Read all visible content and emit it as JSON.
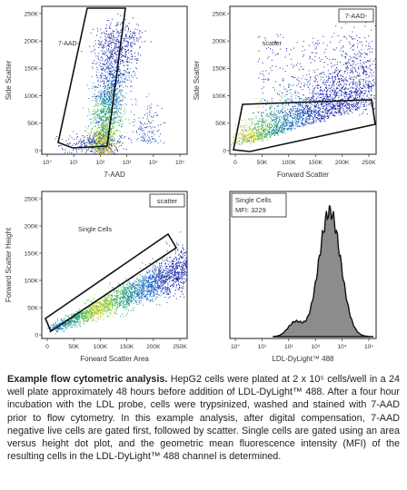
{
  "panels": [
    {
      "id": "p1",
      "type": "scatter-density",
      "xlabel": "7-AAD",
      "ylabel": "Side Scatter",
      "x_scale": "log",
      "xticks": [
        "10°",
        "10¹",
        "10²",
        "10³",
        "10⁴",
        "10⁵"
      ],
      "yticks": [
        "0",
        "50K",
        "100K",
        "150K",
        "200K",
        "250K"
      ],
      "gate_label": "7-AAD-",
      "title_box": ""
    },
    {
      "id": "p2",
      "type": "scatter-density",
      "xlabel": "Forward Scatter",
      "ylabel": "Side Scatter",
      "xticks": [
        "0",
        "50K",
        "100K",
        "150K",
        "200K",
        "250K"
      ],
      "yticks": [
        "0",
        "50K",
        "100K",
        "150K",
        "200K",
        "250K"
      ],
      "gate_label": "scatter",
      "title_box": "7-AAD-"
    },
    {
      "id": "p3",
      "type": "scatter-density",
      "xlabel": "Forward Scatter Area",
      "ylabel": "Forward Scatter Height",
      "xticks": [
        "0",
        "50K",
        "100K",
        "150K",
        "200K",
        "250K"
      ],
      "yticks": [
        "0",
        "50K",
        "100K",
        "150K",
        "200K",
        "250K"
      ],
      "gate_label": "Single Cells",
      "title_box": "scatter"
    },
    {
      "id": "p4",
      "type": "histogram",
      "xlabel": "LDL-DyLight™ 488",
      "x_scale": "log",
      "xticks": [
        "10°",
        "10¹",
        "10²",
        "10³",
        "10⁴",
        "10⁵"
      ],
      "box_line1": "Single Cells",
      "box_line2": "MFI: 3229"
    }
  ],
  "chart_data": [
    {
      "type": "scatter",
      "xlabel": "7-AAD",
      "ylabel": "Side Scatter",
      "x_scale": "log",
      "xlim": [
        1,
        100000
      ],
      "ylim": [
        0,
        262144
      ],
      "gate": "7-AAD-"
    },
    {
      "type": "scatter",
      "xlabel": "Forward Scatter",
      "ylabel": "Side Scatter",
      "xlim": [
        0,
        262144
      ],
      "ylim": [
        0,
        262144
      ],
      "gate": "scatter"
    },
    {
      "type": "scatter",
      "xlabel": "Forward Scatter Area",
      "ylabel": "Forward Scatter Height",
      "xlim": [
        0,
        262144
      ],
      "ylim": [
        0,
        262144
      ],
      "gate": "Single Cells"
    },
    {
      "type": "area",
      "xlabel": "LDL-DyLight™ 488",
      "x_scale": "log",
      "xlim": [
        1,
        100000
      ],
      "mfi": 3229,
      "series": [
        {
          "name": "Single Cells",
          "fill": "#8c8c8c"
        }
      ]
    }
  ],
  "caption": {
    "bold": "Example flow cytometric analysis.",
    "text": " HepG2 cells were plated at 2 x 10⁵ cells/well in a 24 well plate approximately 48 hours before addition of LDL-DyLight™ 488. After a four hour incubation with the LDL probe, cells were trypsinized, washed and stained with 7-AAD prior to flow cytometry. In this example analysis, after digital compensation, 7-AAD negative live cells are gated first, followed by scatter. Single cells are gated using an area versus height dot plot, and the geometric mean fluorescence intensity (MFI) of the resulting cells in the LDL-DyLight™ 488 channel is determined."
  },
  "colors": {
    "low": "#1f2fb8",
    "mid": "#20b040",
    "high": "#f3e21a",
    "peak": "#e8701a",
    "hist_fill": "#8c8c8c"
  }
}
